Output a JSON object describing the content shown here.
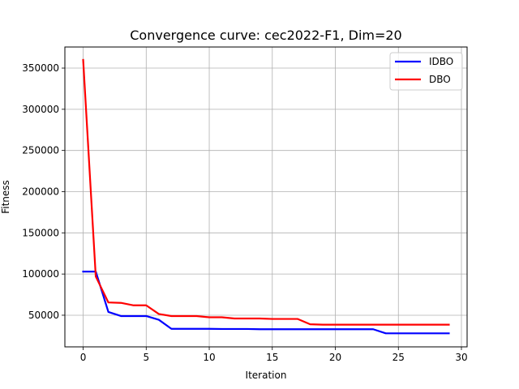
{
  "chart_data": {
    "type": "line",
    "title": "Convergence curve:  cec2022-F1, Dim=20",
    "xlabel": "Iteration",
    "ylabel": "Fitness",
    "xlim": [
      -1.45,
      30.45
    ],
    "ylim": [
      11600,
      375600
    ],
    "xticks": [
      0,
      5,
      10,
      15,
      20,
      25,
      30
    ],
    "xtick_labels": [
      "0",
      "5",
      "10",
      "15",
      "20",
      "25",
      "30"
    ],
    "yticks": [
      50000,
      100000,
      150000,
      200000,
      250000,
      300000,
      350000
    ],
    "ytick_labels": [
      "50000",
      "100000",
      "150000",
      "200000",
      "250000",
      "300000",
      "350000"
    ],
    "grid": true,
    "legend": {
      "placement": "top-right"
    },
    "x": [
      0,
      1,
      2,
      3,
      4,
      5,
      6,
      7,
      8,
      9,
      10,
      11,
      12,
      13,
      14,
      15,
      16,
      17,
      18,
      19,
      20,
      21,
      22,
      23,
      24,
      25,
      26,
      27,
      28,
      29
    ],
    "series": [
      {
        "name": "IDBO",
        "color": "#0000ff",
        "values": [
          103000,
          103000,
          54000,
          49000,
          49000,
          49000,
          44500,
          33500,
          33500,
          33500,
          33500,
          33300,
          33300,
          33300,
          33000,
          33000,
          33000,
          33000,
          33000,
          33000,
          33000,
          33000,
          33000,
          33000,
          28000,
          28000,
          28000,
          28000,
          28000,
          28000
        ]
      },
      {
        "name": "DBO",
        "color": "#ff0000",
        "values": [
          360000,
          97000,
          65500,
          65000,
          62000,
          62000,
          51500,
          49000,
          49000,
          49000,
          47500,
          47500,
          46000,
          46000,
          46000,
          45500,
          45500,
          45500,
          39000,
          38500,
          38500,
          38500,
          38500,
          38500,
          38500,
          38500,
          38500,
          38500,
          38500,
          38500
        ]
      }
    ]
  }
}
